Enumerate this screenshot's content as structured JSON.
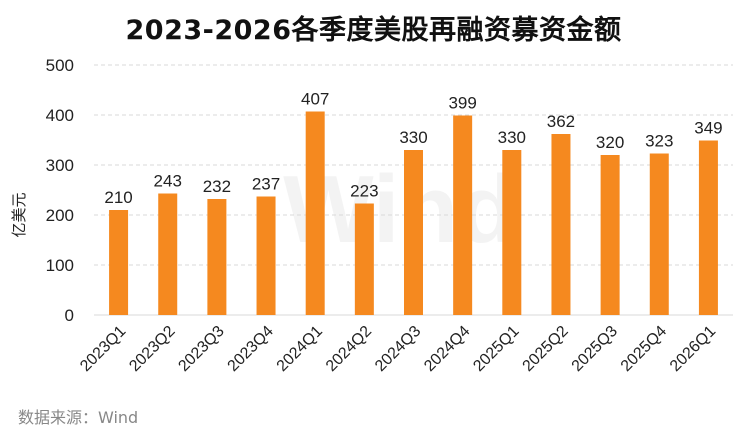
{
  "source_text": "数据来源：Wind",
  "watermark": "Wind",
  "colors": {
    "bar": "#F5891F",
    "grid": "#d9d9d9"
  },
  "chart_data": {
    "type": "bar",
    "title": "2023-2026各季度美股再融资募资金额",
    "ylabel": "亿美元",
    "xlabel": "",
    "categories": [
      "2023Q1",
      "2023Q2",
      "2023Q3",
      "2023Q4",
      "2024Q1",
      "2024Q2",
      "2024Q3",
      "2024Q4",
      "2025Q1",
      "2025Q2",
      "2025Q3",
      "2025Q4",
      "2026Q1"
    ],
    "values": [
      210,
      243,
      232,
      237,
      407,
      223,
      330,
      399,
      330,
      362,
      320,
      323,
      349
    ],
    "ylim": [
      0,
      500
    ],
    "yticks": [
      0,
      100,
      200,
      300,
      400,
      500
    ],
    "grid": true,
    "data_labels": true
  }
}
